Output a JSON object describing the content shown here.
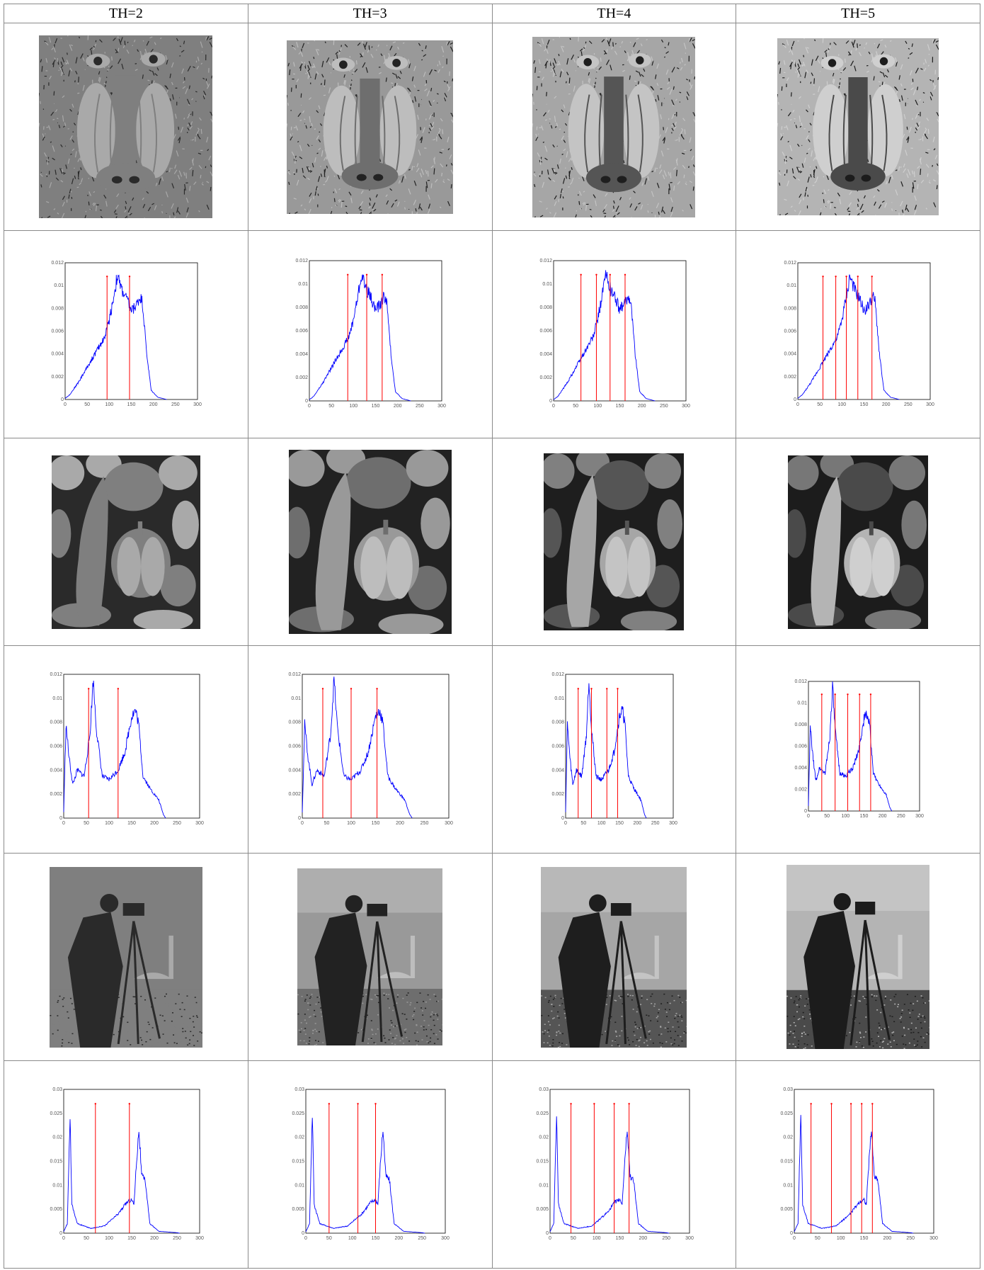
{
  "columns": [
    "TH=2",
    "TH=3",
    "TH=4",
    "TH=5"
  ],
  "images": [
    "mandrill",
    "peppers",
    "cameraman"
  ],
  "hist_color": "#0000ff",
  "threshold_color": "#ff0000",
  "chart_data": [
    {
      "image": "mandrill",
      "th": 2,
      "type": "line",
      "xlim": [
        0,
        300
      ],
      "ylim": [
        0,
        0.012
      ],
      "xticks": [
        "0",
        "50",
        "100",
        "150",
        "200",
        "250",
        "300"
      ],
      "yticks": [
        "0",
        "0.002",
        "0.004",
        "0.006",
        "0.008",
        "0.01",
        "0.012"
      ],
      "thresholds": [
        95,
        146
      ]
    },
    {
      "image": "mandrill",
      "th": 3,
      "type": "line",
      "xlim": [
        0,
        300
      ],
      "ylim": [
        0,
        0.012
      ],
      "xticks": [
        "0",
        "50",
        "100",
        "150",
        "200",
        "250",
        "300"
      ],
      "yticks": [
        "0",
        "0.002",
        "0.004",
        "0.006",
        "0.008",
        "0.01",
        "0.012"
      ],
      "thresholds": [
        87,
        130,
        165
      ]
    },
    {
      "image": "mandrill",
      "th": 4,
      "type": "line",
      "xlim": [
        0,
        300
      ],
      "ylim": [
        0,
        0.012
      ],
      "xticks": [
        "0",
        "50",
        "100",
        "150",
        "200",
        "250",
        "300"
      ],
      "yticks": [
        "0",
        "0.002",
        "0.004",
        "0.006",
        "0.008",
        "0.01",
        "0.012"
      ],
      "thresholds": [
        62,
        97,
        128,
        162
      ]
    },
    {
      "image": "mandrill",
      "th": 5,
      "type": "line",
      "xlim": [
        0,
        300
      ],
      "ylim": [
        0,
        0.012
      ],
      "xticks": [
        "0",
        "50",
        "100",
        "150",
        "200",
        "250",
        "300"
      ],
      "yticks": [
        "0",
        "0.002",
        "0.004",
        "0.006",
        "0.008",
        "0.01",
        "0.012"
      ],
      "thresholds": [
        57,
        86,
        110,
        136,
        168
      ]
    },
    {
      "image": "peppers",
      "th": 2,
      "type": "line",
      "xlim": [
        0,
        300
      ],
      "ylim": [
        0,
        0.012
      ],
      "xticks": [
        "0",
        "50",
        "100",
        "150",
        "200",
        "250",
        "300"
      ],
      "yticks": [
        "0",
        "0.002",
        "0.004",
        "0.006",
        "0.008",
        "0.01",
        "0.012"
      ],
      "thresholds": [
        55,
        120
      ]
    },
    {
      "image": "peppers",
      "th": 3,
      "type": "line",
      "xlim": [
        0,
        300
      ],
      "ylim": [
        0,
        0.012
      ],
      "xticks": [
        "0",
        "50",
        "100",
        "150",
        "200",
        "250",
        "300"
      ],
      "yticks": [
        "0",
        "0.002",
        "0.004",
        "0.006",
        "0.008",
        "0.01",
        "0.012"
      ],
      "thresholds": [
        42,
        100,
        153
      ]
    },
    {
      "image": "peppers",
      "th": 4,
      "type": "line",
      "xlim": [
        0,
        300
      ],
      "ylim": [
        0,
        0.012
      ],
      "xticks": [
        "0",
        "50",
        "100",
        "150",
        "200",
        "250",
        "300"
      ],
      "yticks": [
        "0",
        "0.002",
        "0.004",
        "0.006",
        "0.008",
        "0.01",
        "0.012"
      ],
      "thresholds": [
        35,
        72,
        115,
        145
      ]
    },
    {
      "image": "peppers",
      "th": 5,
      "type": "line",
      "xlim": [
        0,
        300
      ],
      "ylim": [
        0,
        0.012
      ],
      "xticks": [
        "0",
        "50",
        "100",
        "150",
        "200",
        "250",
        "300"
      ],
      "yticks": [
        "0",
        "0.002",
        "0.004",
        "0.006",
        "0.008",
        "0.01",
        "0.012"
      ],
      "thresholds": [
        36,
        72,
        106,
        138,
        168
      ]
    },
    {
      "image": "cameraman",
      "th": 2,
      "type": "line",
      "xlim": [
        0,
        300
      ],
      "ylim": [
        0,
        0.03
      ],
      "xticks": [
        "0",
        "50",
        "100",
        "150",
        "200",
        "250",
        "300"
      ],
      "yticks": [
        "0",
        "0.005",
        "0.01",
        "0.015",
        "0.02",
        "0.025",
        "0.03"
      ],
      "thresholds": [
        70,
        145
      ]
    },
    {
      "image": "cameraman",
      "th": 3,
      "type": "line",
      "xlim": [
        0,
        300
      ],
      "ylim": [
        0,
        0.03
      ],
      "xticks": [
        "0",
        "50",
        "100",
        "150",
        "200",
        "250",
        "300"
      ],
      "yticks": [
        "0",
        "0.005",
        "0.01",
        "0.015",
        "0.02",
        "0.025",
        "0.03"
      ],
      "thresholds": [
        50,
        112,
        150
      ]
    },
    {
      "image": "cameraman",
      "th": 4,
      "type": "line",
      "xlim": [
        0,
        300
      ],
      "ylim": [
        0,
        0.03
      ],
      "xticks": [
        "0",
        "50",
        "100",
        "150",
        "200",
        "250",
        "300"
      ],
      "yticks": [
        "0",
        "0.005",
        "0.01",
        "0.015",
        "0.02",
        "0.025",
        "0.03"
      ],
      "thresholds": [
        45,
        95,
        138,
        170
      ]
    },
    {
      "image": "cameraman",
      "th": 5,
      "type": "line",
      "xlim": [
        0,
        300
      ],
      "ylim": [
        0,
        0.03
      ],
      "xticks": [
        "0",
        "50",
        "100",
        "150",
        "200",
        "250",
        "300"
      ],
      "yticks": [
        "0",
        "0.005",
        "0.01",
        "0.015",
        "0.02",
        "0.025",
        "0.03"
      ],
      "thresholds": [
        36,
        80,
        122,
        145,
        168
      ]
    }
  ]
}
